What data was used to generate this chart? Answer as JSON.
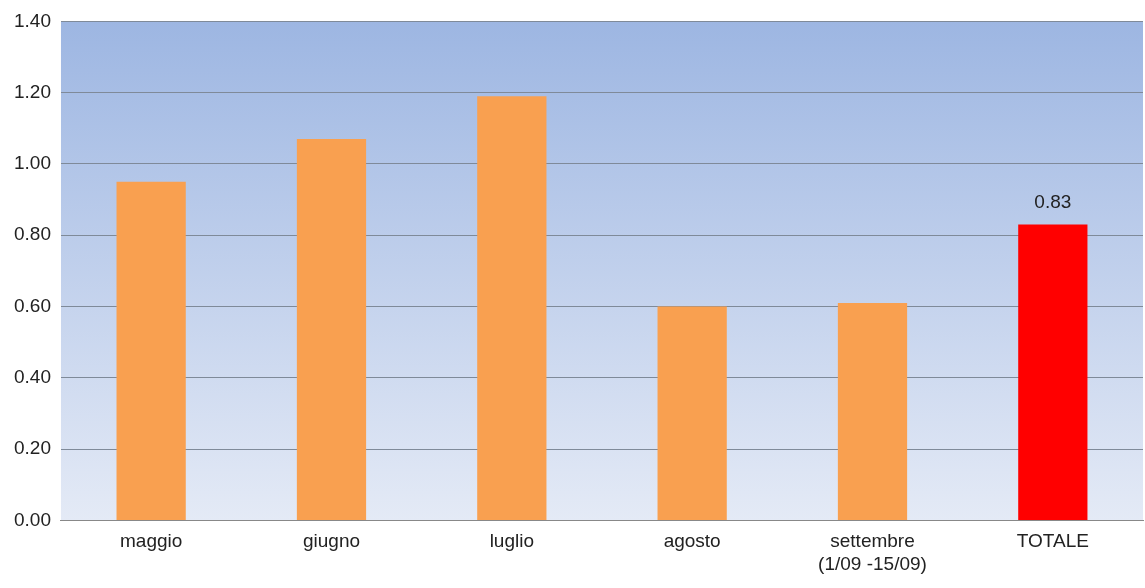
{
  "chart_data": {
    "type": "bar",
    "categories": [
      "maggio",
      "giugno",
      "luglio",
      "agosto",
      "settembre\n(1/09 -15/09)",
      "TOTALE"
    ],
    "values": [
      0.95,
      1.07,
      1.19,
      0.6,
      0.61,
      0.83
    ],
    "colors": [
      "#f9a050",
      "#f9a050",
      "#f9a050",
      "#f9a050",
      "#f9a050",
      "#ff0000"
    ],
    "value_labels": [
      null,
      null,
      null,
      null,
      null,
      "0.83"
    ],
    "ylim": [
      0,
      1.4
    ],
    "yticks": [
      {
        "value": 0,
        "label": "0.00"
      },
      {
        "value": 0.2,
        "label": "0.20"
      },
      {
        "value": 0.4,
        "label": "0.40"
      },
      {
        "value": 0.6,
        "label": "0.60"
      },
      {
        "value": 0.8,
        "label": "0.80"
      },
      {
        "value": 1,
        "label": "1.00"
      },
      {
        "value": 1.2,
        "label": "1.20"
      },
      {
        "value": 1.4,
        "label": "1.40"
      }
    ],
    "grid": "y",
    "legend": false
  }
}
